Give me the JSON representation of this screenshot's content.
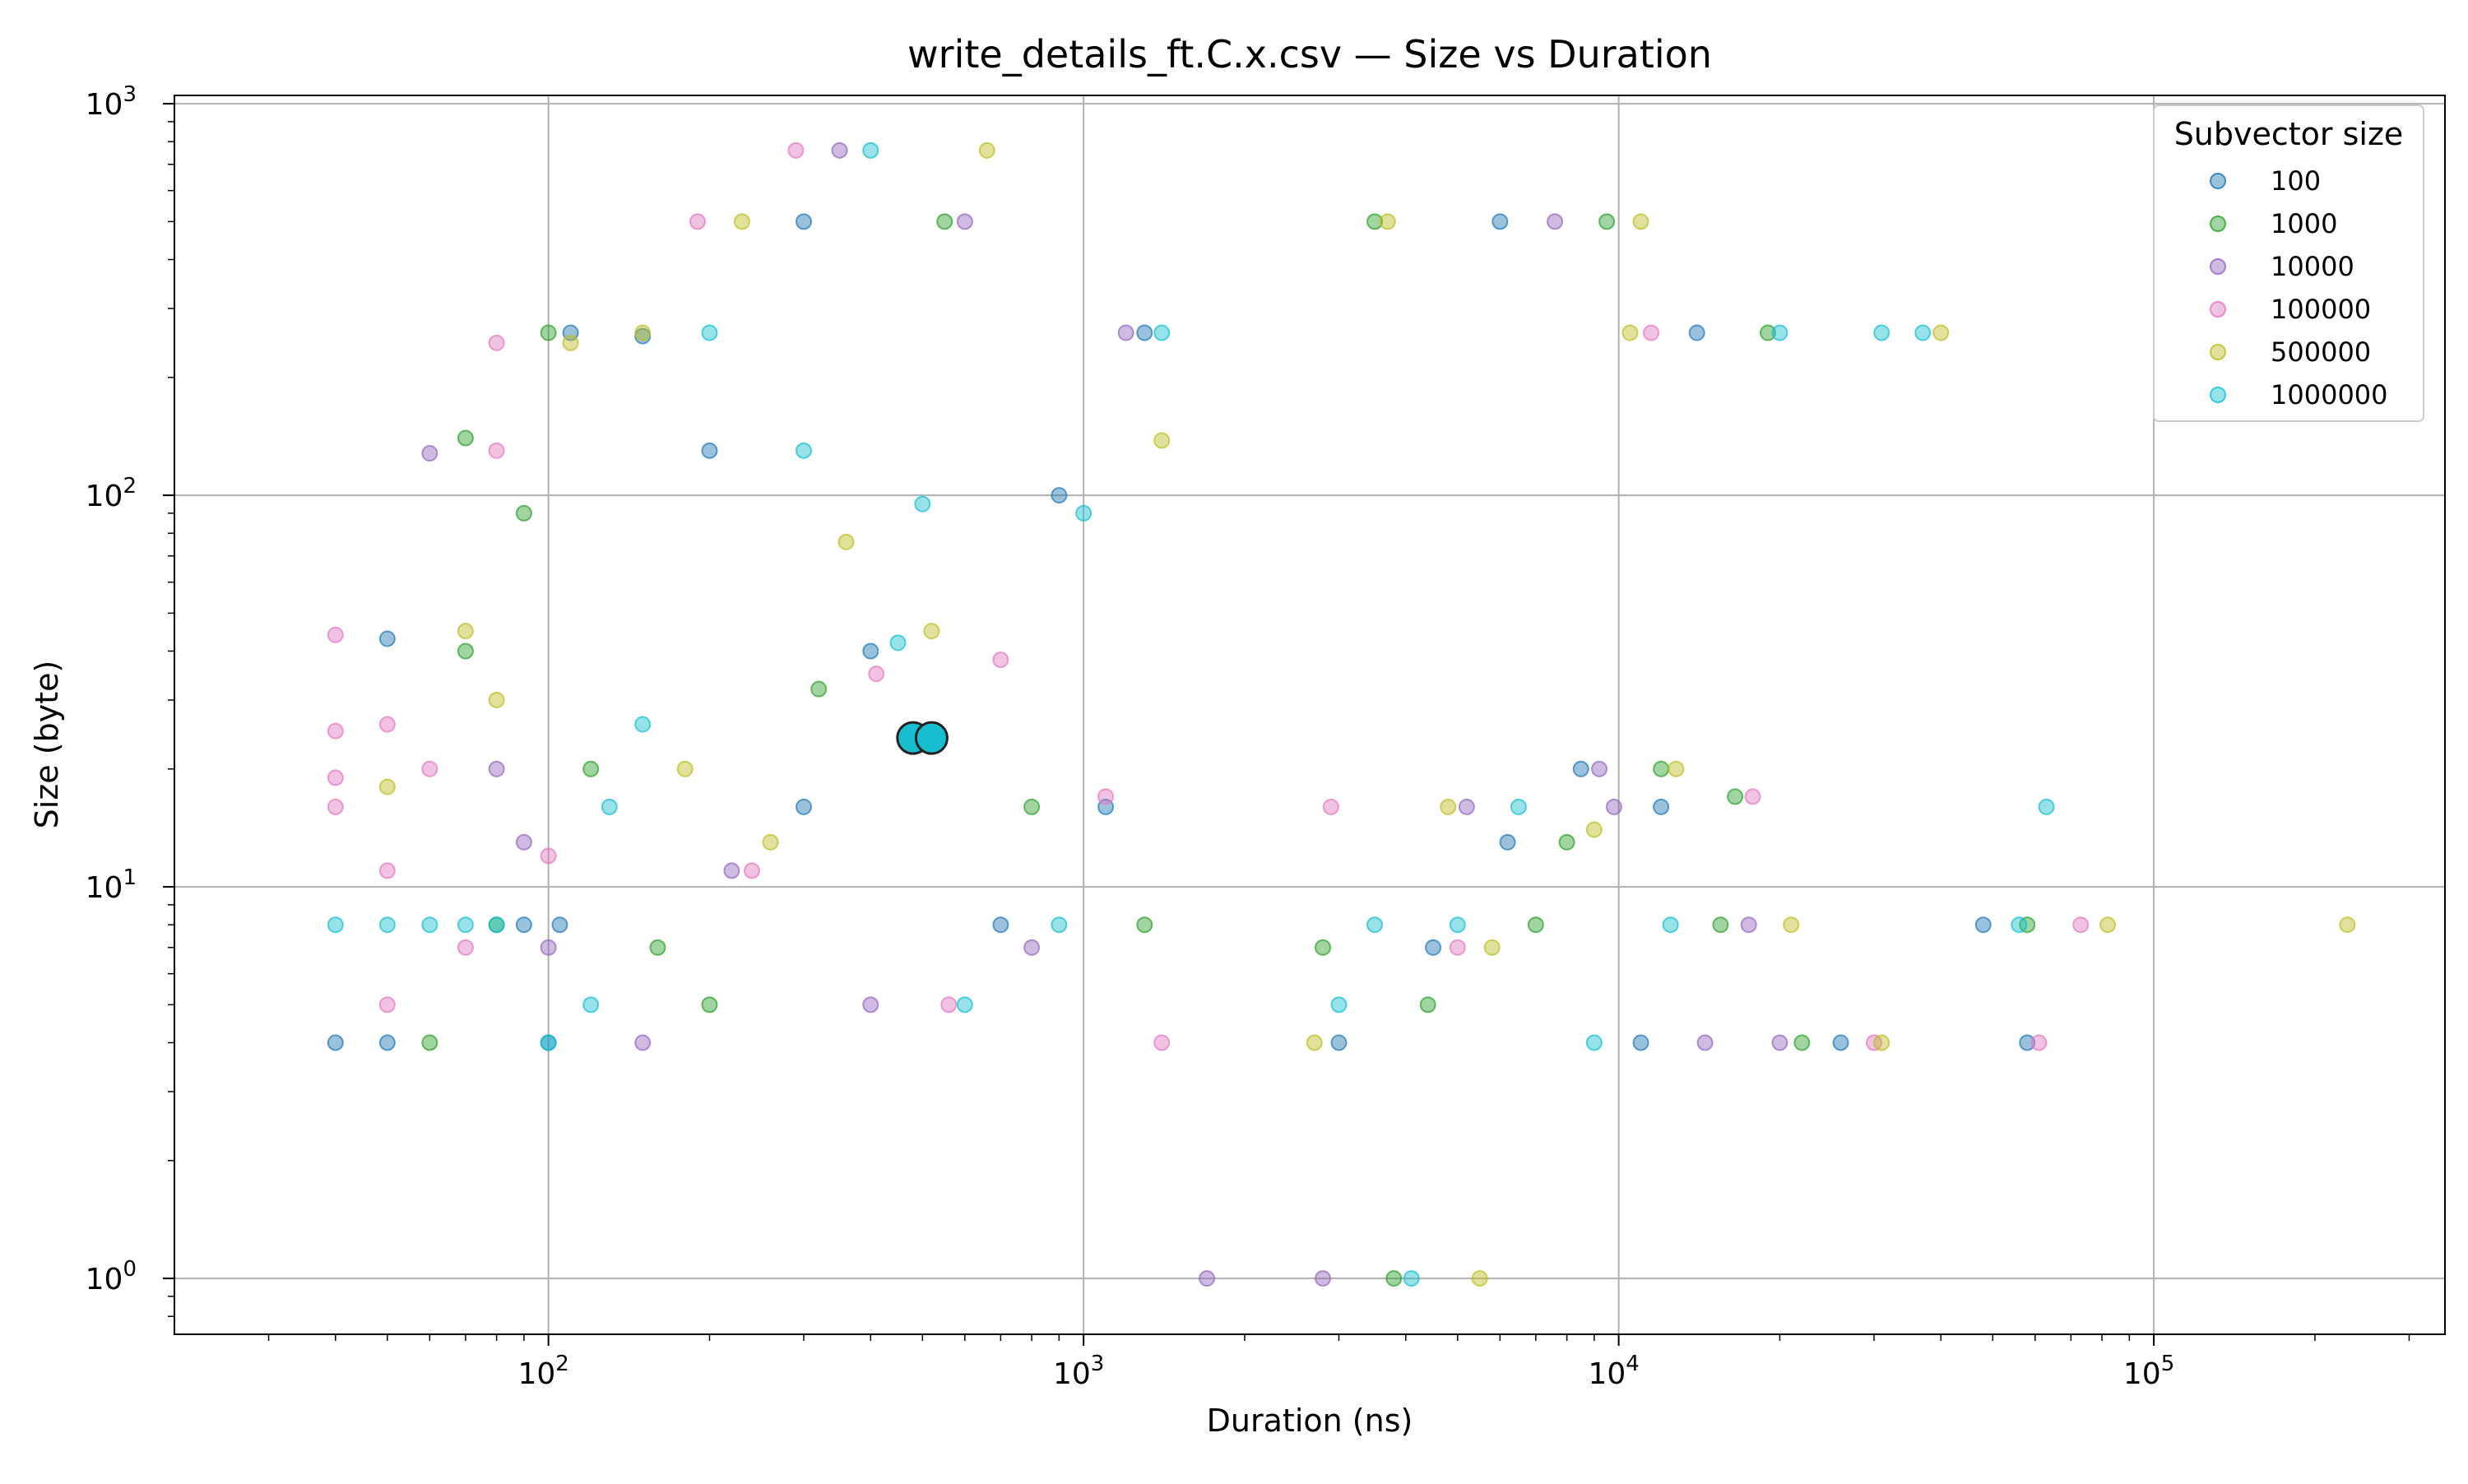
{
  "chart_data": {
    "type": "scatter",
    "title": "write_details_ft.C.x.csv — Size vs Duration",
    "xlabel": "Duration (ns)",
    "ylabel": "Size (byte)",
    "xscale": "log",
    "yscale": "log",
    "xlim": [
      20,
      350000
    ],
    "ylim": [
      0.72,
      1050
    ],
    "grid": true,
    "x_ticks": [
      {
        "value": 100,
        "base": "10",
        "exp": "2"
      },
      {
        "value": 1000,
        "base": "10",
        "exp": "3"
      },
      {
        "value": 10000,
        "base": "10",
        "exp": "4"
      },
      {
        "value": 100000,
        "base": "10",
        "exp": "5"
      }
    ],
    "y_ticks": [
      {
        "value": 1,
        "base": "10",
        "exp": "0"
      },
      {
        "value": 10,
        "base": "10",
        "exp": "1"
      },
      {
        "value": 100,
        "base": "10",
        "exp": "2"
      },
      {
        "value": 1000,
        "base": "10",
        "exp": "3"
      }
    ],
    "legend": {
      "title": "Subvector size",
      "position": "top-right"
    },
    "series": [
      {
        "name": "100",
        "color": "#1f77b4",
        "points": [
          [
            40,
            4
          ],
          [
            50,
            4
          ],
          [
            50,
            43
          ],
          [
            90,
            8
          ],
          [
            100,
            4
          ],
          [
            105,
            8
          ],
          [
            110,
            260
          ],
          [
            150,
            255
          ],
          [
            200,
            130
          ],
          [
            300,
            500
          ],
          [
            300,
            16
          ],
          [
            400,
            40
          ],
          [
            500,
            24
          ],
          [
            700,
            8
          ],
          [
            900,
            100
          ],
          [
            1300,
            260
          ],
          [
            1100,
            16
          ],
          [
            3000,
            4
          ],
          [
            4500,
            7
          ],
          [
            6000,
            500
          ],
          [
            6200,
            13
          ],
          [
            8500,
            20
          ],
          [
            11000,
            4
          ],
          [
            12000,
            16
          ],
          [
            14000,
            260
          ],
          [
            26000,
            4
          ],
          [
            48000,
            8
          ],
          [
            58000,
            4
          ]
        ]
      },
      {
        "name": "1000",
        "color": "#2ca02c",
        "points": [
          [
            60,
            4
          ],
          [
            70,
            140
          ],
          [
            70,
            40
          ],
          [
            80,
            8
          ],
          [
            90,
            90
          ],
          [
            100,
            260
          ],
          [
            120,
            20
          ],
          [
            160,
            7
          ],
          [
            200,
            5
          ],
          [
            320,
            32
          ],
          [
            550,
            500
          ],
          [
            800,
            16
          ],
          [
            1300,
            8
          ],
          [
            2800,
            7
          ],
          [
            3500,
            500
          ],
          [
            3800,
            1
          ],
          [
            4400,
            5
          ],
          [
            7000,
            8
          ],
          [
            8000,
            13
          ],
          [
            9500,
            500
          ],
          [
            12000,
            20
          ],
          [
            15500,
            8
          ],
          [
            16500,
            17
          ],
          [
            19000,
            260
          ],
          [
            22000,
            4
          ],
          [
            58000,
            8
          ]
        ]
      },
      {
        "name": "10000",
        "color": "#9467bd",
        "points": [
          [
            60,
            128
          ],
          [
            80,
            20
          ],
          [
            90,
            13
          ],
          [
            100,
            7
          ],
          [
            150,
            4
          ],
          [
            220,
            11
          ],
          [
            350,
            760
          ],
          [
            400,
            5
          ],
          [
            600,
            500
          ],
          [
            800,
            7
          ],
          [
            1200,
            260
          ],
          [
            1700,
            1
          ],
          [
            2800,
            1
          ],
          [
            5200,
            16
          ],
          [
            7600,
            500
          ],
          [
            9200,
            20
          ],
          [
            9800,
            16
          ],
          [
            14500,
            4
          ],
          [
            17500,
            8
          ],
          [
            20000,
            4
          ]
        ]
      },
      {
        "name": "100000",
        "color": "#e377c2",
        "points": [
          [
            40,
            44
          ],
          [
            40,
            25
          ],
          [
            40,
            19
          ],
          [
            40,
            16
          ],
          [
            50,
            26
          ],
          [
            50,
            5
          ],
          [
            50,
            11
          ],
          [
            60,
            20
          ],
          [
            70,
            7
          ],
          [
            80,
            245
          ],
          [
            80,
            130
          ],
          [
            100,
            12
          ],
          [
            190,
            500
          ],
          [
            240,
            11
          ],
          [
            290,
            760
          ],
          [
            410,
            35
          ],
          [
            560,
            5
          ],
          [
            700,
            38
          ],
          [
            1100,
            17
          ],
          [
            1400,
            4
          ],
          [
            2900,
            16
          ],
          [
            5000,
            7
          ],
          [
            11500,
            260
          ],
          [
            17800,
            17
          ],
          [
            30000,
            4
          ],
          [
            61000,
            4
          ],
          [
            73000,
            8
          ]
        ]
      },
      {
        "name": "500000",
        "color": "#bcbd22",
        "points": [
          [
            50,
            18
          ],
          [
            70,
            45
          ],
          [
            80,
            30
          ],
          [
            110,
            245
          ],
          [
            150,
            260
          ],
          [
            180,
            20
          ],
          [
            230,
            500
          ],
          [
            260,
            13
          ],
          [
            360,
            76
          ],
          [
            520,
            45
          ],
          [
            660,
            760
          ],
          [
            1400,
            138
          ],
          [
            2700,
            4
          ],
          [
            3700,
            500
          ],
          [
            4800,
            16
          ],
          [
            5500,
            1
          ],
          [
            5800,
            7
          ],
          [
            9000,
            14
          ],
          [
            10500,
            260
          ],
          [
            11000,
            500
          ],
          [
            12800,
            20
          ],
          [
            21000,
            8
          ],
          [
            31000,
            4
          ],
          [
            40000,
            260
          ],
          [
            82000,
            8
          ],
          [
            230000,
            8
          ]
        ]
      },
      {
        "name": "1000000",
        "color": "#17becf",
        "points": [
          [
            40,
            8
          ],
          [
            50,
            8
          ],
          [
            60,
            8
          ],
          [
            70,
            8
          ],
          [
            80,
            8
          ],
          [
            100,
            4
          ],
          [
            120,
            5
          ],
          [
            130,
            16
          ],
          [
            150,
            26
          ],
          [
            200,
            260
          ],
          [
            300,
            130
          ],
          [
            400,
            760
          ],
          [
            450,
            42
          ],
          [
            500,
            95
          ],
          [
            520,
            24
          ],
          [
            600,
            5
          ],
          [
            900,
            8
          ],
          [
            1000,
            90
          ],
          [
            1400,
            260
          ],
          [
            3000,
            5
          ],
          [
            3500,
            8
          ],
          [
            4100,
            1
          ],
          [
            5000,
            8
          ],
          [
            6500,
            16
          ],
          [
            9000,
            4
          ],
          [
            12500,
            8
          ],
          [
            20000,
            260
          ],
          [
            31000,
            260
          ],
          [
            37000,
            260
          ],
          [
            56000,
            8
          ],
          [
            63000,
            16
          ]
        ]
      }
    ],
    "highlighted_points": [
      [
        480,
        24
      ],
      [
        520,
        24
      ]
    ]
  }
}
